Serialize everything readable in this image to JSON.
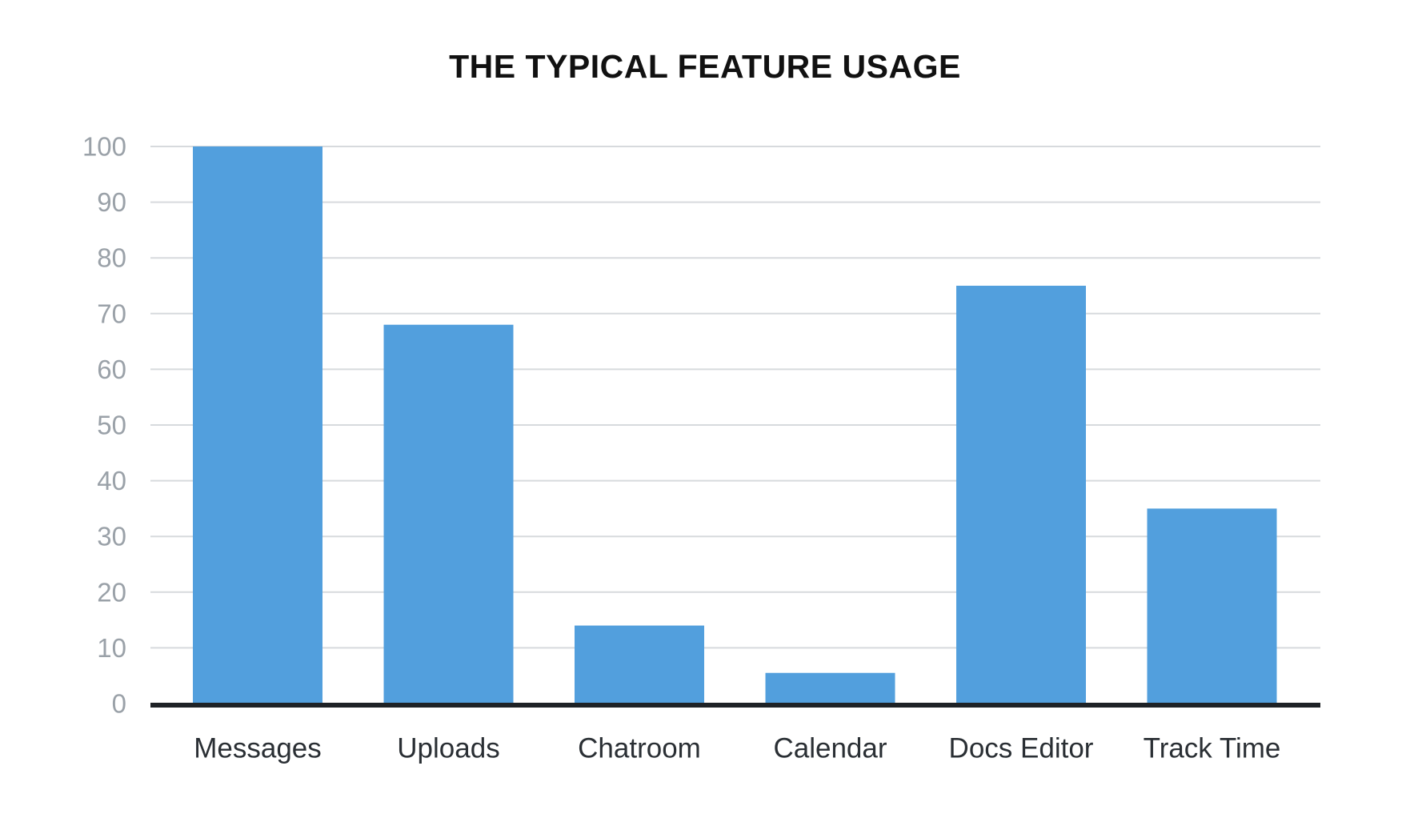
{
  "chart_data": {
    "type": "bar",
    "title": "THE TYPICAL FEATURE USAGE",
    "categories": [
      "Messages",
      "Uploads",
      "Chatroom",
      "Calendar",
      "Docs Editor",
      "Track Time"
    ],
    "values": [
      100,
      68,
      14,
      5.5,
      75,
      35
    ],
    "xlabel": "",
    "ylabel": "",
    "ylim": [
      0,
      100
    ],
    "yticks": [
      0,
      10,
      20,
      30,
      40,
      50,
      60,
      70,
      80,
      90,
      100
    ],
    "grid": true,
    "legend": "none",
    "colors": {
      "bar": "#529fdd",
      "grid": "#d7dadd",
      "baseline": "#1e2226",
      "tick_text": "#9aa1a8",
      "category_text": "#2a2f34"
    }
  }
}
